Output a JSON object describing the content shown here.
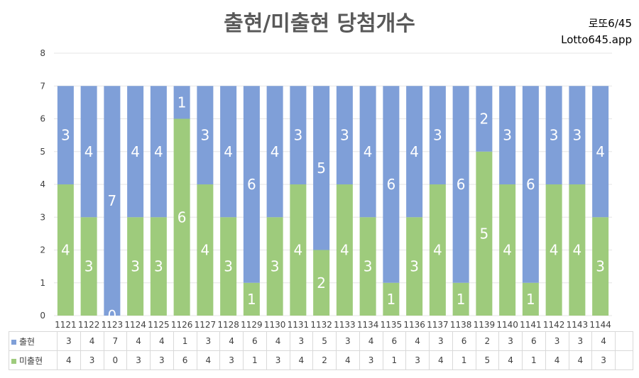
{
  "title": "출현/미출현 당첨개수",
  "brand": {
    "line1": "로또6/45",
    "line2": "Lotto645.app"
  },
  "colors": {
    "appeared": "#7f9fd8",
    "not_appeared": "#9ecb7c",
    "grid": "#e6e6e6",
    "axis_text": "#404040",
    "segment_label": "#ffffff"
  },
  "chart_data": {
    "type": "bar",
    "stacked": true,
    "title": "출현/미출현 당첨개수",
    "xlabel": "",
    "ylabel": "",
    "ylim": [
      0,
      8
    ],
    "yticks": [
      0,
      1,
      2,
      3,
      4,
      5,
      6,
      7,
      8
    ],
    "grid": true,
    "legend": "table-left",
    "categories": [
      "1121",
      "1122",
      "1123",
      "1124",
      "1125",
      "1126",
      "1127",
      "1128",
      "1129",
      "1130",
      "1131",
      "1132",
      "1133",
      "1134",
      "1135",
      "1136",
      "1137",
      "1138",
      "1139",
      "1140",
      "1141",
      "1142",
      "1143",
      "1144"
    ],
    "series": [
      {
        "name": "미출현",
        "values": [
          4,
          3,
          0,
          3,
          3,
          6,
          4,
          3,
          1,
          3,
          4,
          2,
          4,
          3,
          1,
          3,
          4,
          1,
          5,
          4,
          1,
          4,
          4,
          3
        ]
      },
      {
        "name": "출현",
        "values": [
          3,
          4,
          7,
          4,
          4,
          1,
          3,
          4,
          6,
          4,
          3,
          5,
          3,
          4,
          6,
          4,
          3,
          6,
          2,
          3,
          6,
          3,
          3,
          4
        ]
      }
    ]
  }
}
